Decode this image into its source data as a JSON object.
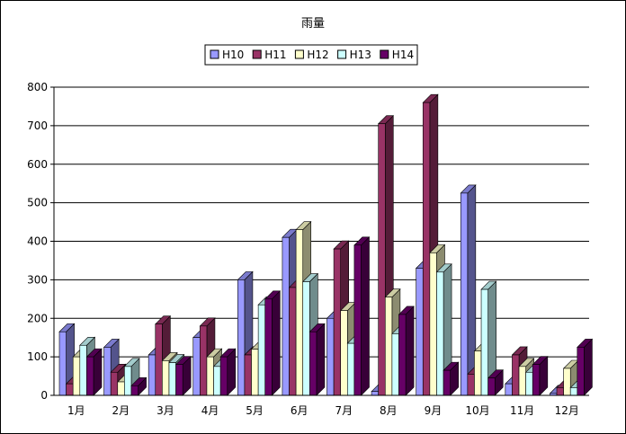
{
  "chart_data": {
    "type": "bar",
    "title": "雨量",
    "xlabel": "",
    "ylabel": "",
    "ylim": [
      0,
      800
    ],
    "ytick_step": 100,
    "grid": true,
    "legend_position": "top",
    "categories": [
      "1月",
      "2月",
      "3月",
      "4月",
      "5月",
      "6月",
      "7月",
      "8月",
      "9月",
      "10月",
      "11月",
      "12月"
    ],
    "series": [
      {
        "name": "H10",
        "color": "#9999ff",
        "values": [
          165,
          125,
          105,
          150,
          300,
          410,
          200,
          10,
          330,
          525,
          30,
          5
        ]
      },
      {
        "name": "H11",
        "color": "#993366",
        "values": [
          30,
          60,
          185,
          180,
          105,
          280,
          380,
          705,
          760,
          55,
          105,
          20
        ]
      },
      {
        "name": "H12",
        "color": "#ffffcc",
        "values": [
          100,
          35,
          90,
          100,
          120,
          430,
          220,
          255,
          370,
          115,
          75,
          70
        ]
      },
      {
        "name": "H13",
        "color": "#ccffff",
        "values": [
          130,
          75,
          85,
          75,
          235,
          295,
          135,
          160,
          320,
          275,
          60,
          20
        ]
      },
      {
        "name": "H14",
        "color": "#660066",
        "values": [
          100,
          25,
          80,
          100,
          250,
          165,
          390,
          210,
          65,
          45,
          80,
          125
        ]
      }
    ]
  }
}
